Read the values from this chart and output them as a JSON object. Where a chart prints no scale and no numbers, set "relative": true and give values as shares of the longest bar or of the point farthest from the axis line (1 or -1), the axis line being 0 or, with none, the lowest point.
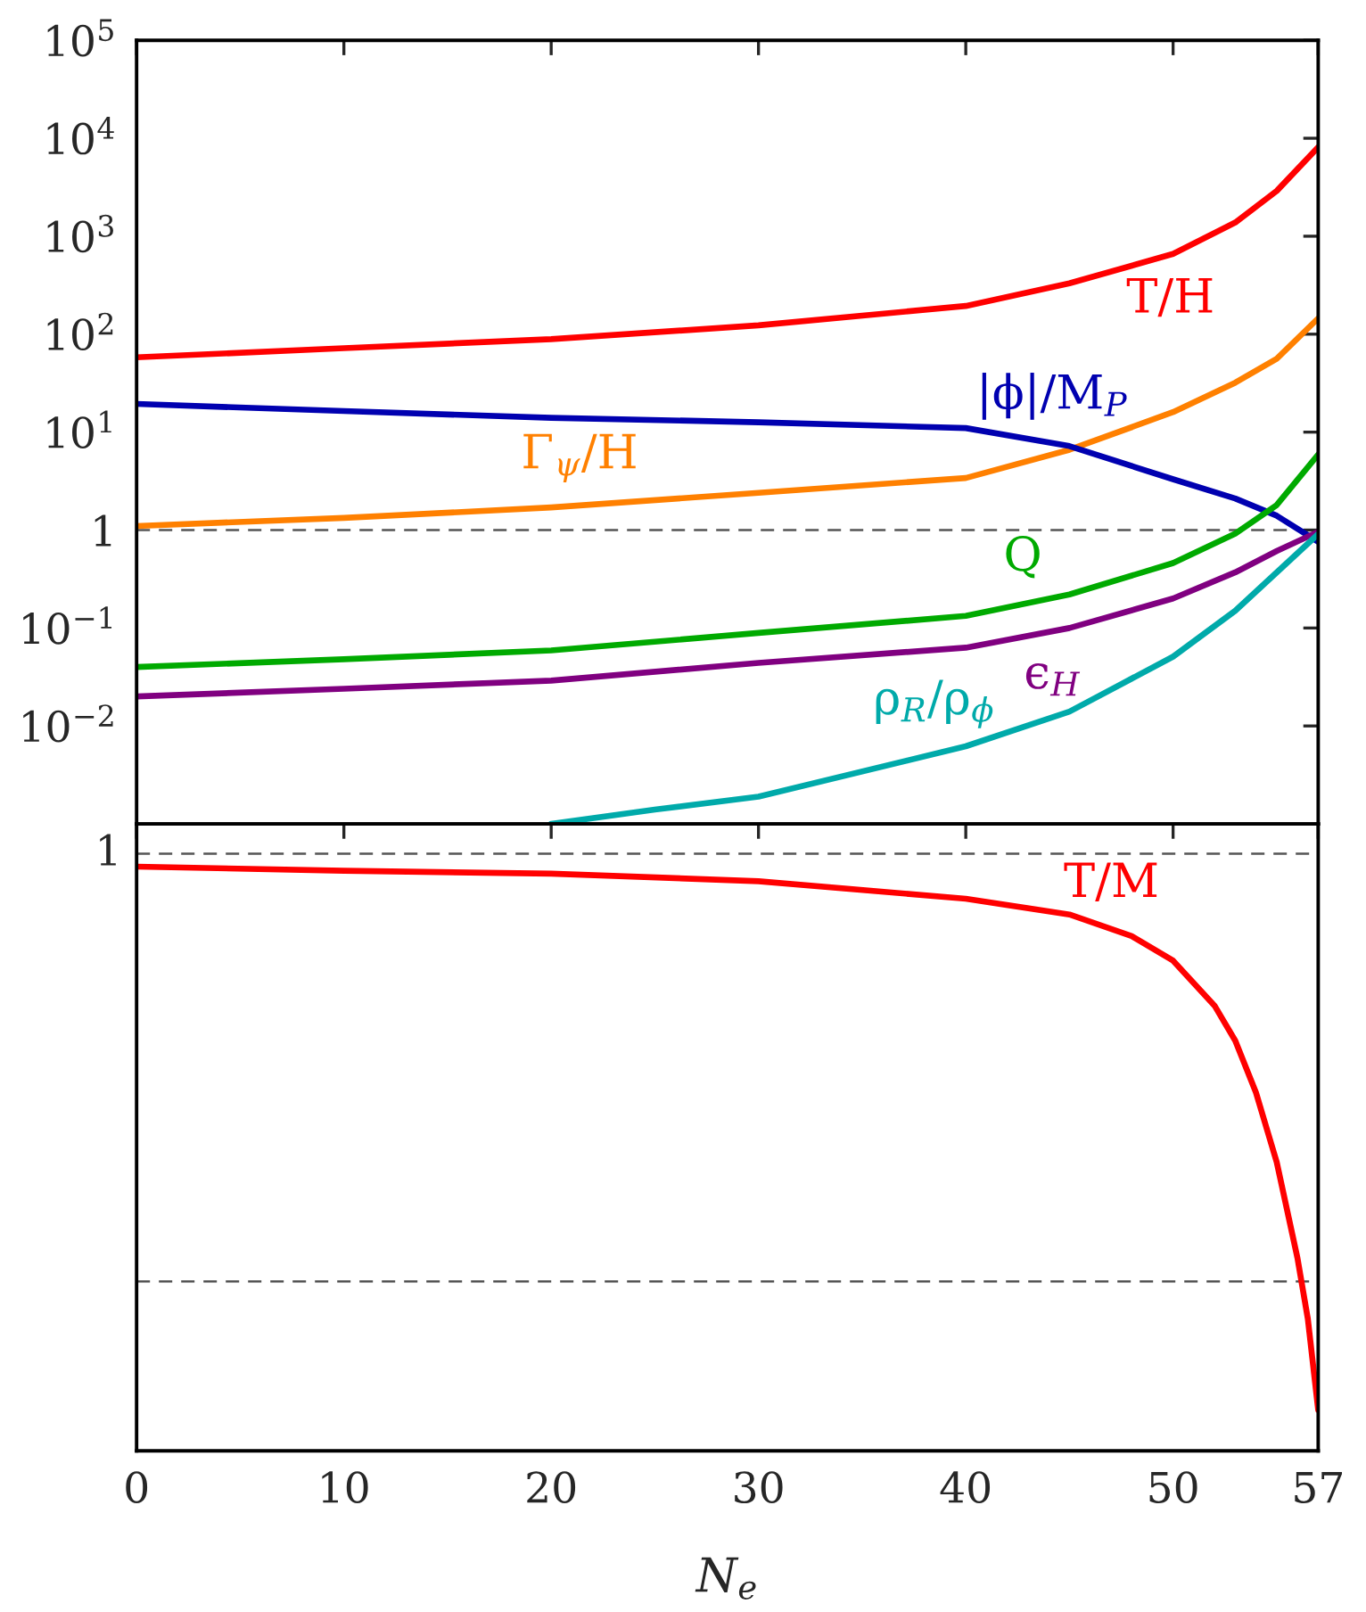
{
  "chart_data": [
    {
      "type": "line",
      "log": true,
      "xlim": [
        0,
        57
      ],
      "xticks": [
        0,
        10,
        20,
        30,
        40,
        50,
        57
      ],
      "ylim": [
        0.001,
        100000
      ],
      "yticks": [
        {
          "value": 0.01,
          "label": "10$^{−2}$"
        },
        {
          "value": 0.1,
          "label": "10$^{−1}$"
        },
        1,
        {
          "value": 10,
          "label": "10$^{1}$"
        },
        {
          "value": 100,
          "label": "10$^{2}$"
        },
        {
          "value": 1000,
          "label": "10$^{3}$"
        },
        {
          "value": 10000,
          "label": "10$^{4}$"
        },
        {
          "value": 100000,
          "label": "10$^{5}$"
        }
      ],
      "tick_labels": "y",
      "grid": false,
      "legend": false,
      "x": [
        0,
        10,
        20,
        30,
        40,
        45,
        50,
        53,
        55,
        57
      ],
      "series": [
        {
          "name": "T/H",
          "color": "#ff0000",
          "values": [
            58,
            72,
            89,
            123,
            194,
            330,
            660,
            1380,
            2900,
            8100
          ]
        },
        {
          "name": "Γ$_{ψ}$/H",
          "color": "#ff8000",
          "values": [
            1.1,
            1.33,
            1.7,
            2.4,
            3.4,
            6.6,
            16,
            32,
            56,
            145
          ]
        },
        {
          "name": "|ϕ|/M$_{P}$",
          "color": "#0000b0",
          "values": [
            19.4,
            16.4,
            14,
            12.6,
            11,
            7.2,
            3.3,
            2.1,
            1.4,
            0.76
          ]
        },
        {
          "name": "Q",
          "color": "#00aa00",
          "values": [
            0.04,
            0.048,
            0.059,
            0.089,
            0.133,
            0.22,
            0.46,
            0.92,
            1.8,
            5.9
          ]
        },
        {
          "name": "ϵ$_{H}$",
          "color": "#800080",
          "values": [
            0.02,
            0.024,
            0.029,
            0.044,
            0.063,
            0.1,
            0.2,
            0.37,
            0.61,
            0.96
          ]
        },
        {
          "name": "ρ$_{R}$/ρ$_{ϕ}$",
          "color": "#00aaaa",
          "x": [
            20,
            25,
            30,
            40,
            45,
            50,
            53,
            55,
            57
          ],
          "values": [
            0.001,
            0.0014,
            0.0019,
            0.0062,
            0.014,
            0.051,
            0.15,
            0.37,
            0.91
          ]
        }
      ],
      "ref_lines": [
        {
          "axis": "y",
          "value": 1,
          "color": "#555555",
          "line_style": "dashed"
        }
      ]
    },
    {
      "type": "line",
      "relative": true,
      "xlim": [
        0,
        57
      ],
      "xticks": [
        0,
        10,
        20,
        30,
        40,
        50,
        57
      ],
      "xlabel": "N$_{e}$",
      "grid": false,
      "legend": false,
      "x": [
        0,
        10,
        20,
        30,
        40,
        45,
        48,
        50,
        52,
        53,
        54,
        55,
        56,
        56.5,
        57
      ],
      "series": [
        {
          "name": "T/M",
          "color": "#ff0000",
          "values": [
            1.0,
            0.993,
            0.988,
            0.975,
            0.945,
            0.918,
            0.881,
            0.839,
            0.762,
            0.702,
            0.613,
            0.494,
            0.33,
            0.226,
            0.07
          ]
        }
      ],
      "ref_lines": [
        {
          "axis": "y",
          "value": 1.022,
          "label": "1",
          "color": "#555555",
          "line_style": "dashed"
        },
        {
          "axis": "y",
          "value": 0.29,
          "color": "#555555",
          "line_style": "dashed"
        }
      ]
    }
  ]
}
